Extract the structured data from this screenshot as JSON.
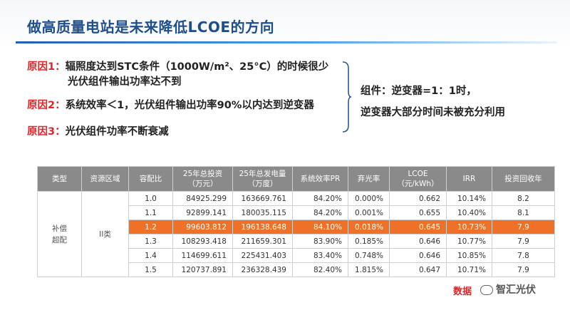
{
  "title": "做高质量电站是未来降低LCOE的方向",
  "reasons": [
    {
      "label": "原因1：",
      "text": "辐照度达到STC条件（1000W/m²、25°C）的时候很少",
      "text2": "光伏组件输出功率达不到"
    },
    {
      "label": "原因2：",
      "text": "系统效率＜1，光伏组件输出功率90%以内达到逆变器"
    },
    {
      "label": "原因3：",
      "text": "光伏组件功率不断衰减"
    }
  ],
  "note": {
    "line1": "组件：逆变器=1：1时，",
    "line2": "逆变器大部分时间未被充分利用"
  },
  "table": {
    "headers": [
      "类型",
      "资源区域",
      "容配比",
      "25年总投资\n（万元）",
      "25年总发电量\n（万度）",
      "系统效率PR",
      "弃光率",
      "LCOE\n（元/kWh）",
      "IRR",
      "投资回收年"
    ],
    "type_cell": "补偿\n超配",
    "region_cell": "II类",
    "rows": [
      [
        "1.0",
        "84925.299",
        "163669.761",
        "84.20%",
        "0.000%",
        "0.662",
        "10.14%",
        "8.2"
      ],
      [
        "1.1",
        "92899.141",
        "180035.115",
        "84.20%",
        "0.001%",
        "0.655",
        "10.40%",
        "8.1"
      ],
      [
        "1.2",
        "99603.812",
        "196138.648",
        "84.10%",
        "0.018%",
        "0.645",
        "10.73%",
        "7.9"
      ],
      [
        "1.3",
        "108293.418",
        "211659.301",
        "83.90%",
        "0.185%",
        "0.646",
        "10.77%",
        "7.9"
      ],
      [
        "1.4",
        "114699.611",
        "225431.403",
        "83.40%",
        "0.748%",
        "0.646",
        "10.85%",
        "7.8"
      ],
      [
        "1.5",
        "120737.891",
        "236328.439",
        "82.40%",
        "1.815%",
        "0.647",
        "10.71%",
        "7.9"
      ]
    ],
    "highlight_row": 2,
    "highlight_color": "#ef7128"
  },
  "watermark": {
    "text": "数据",
    "account": "智汇光伏"
  }
}
